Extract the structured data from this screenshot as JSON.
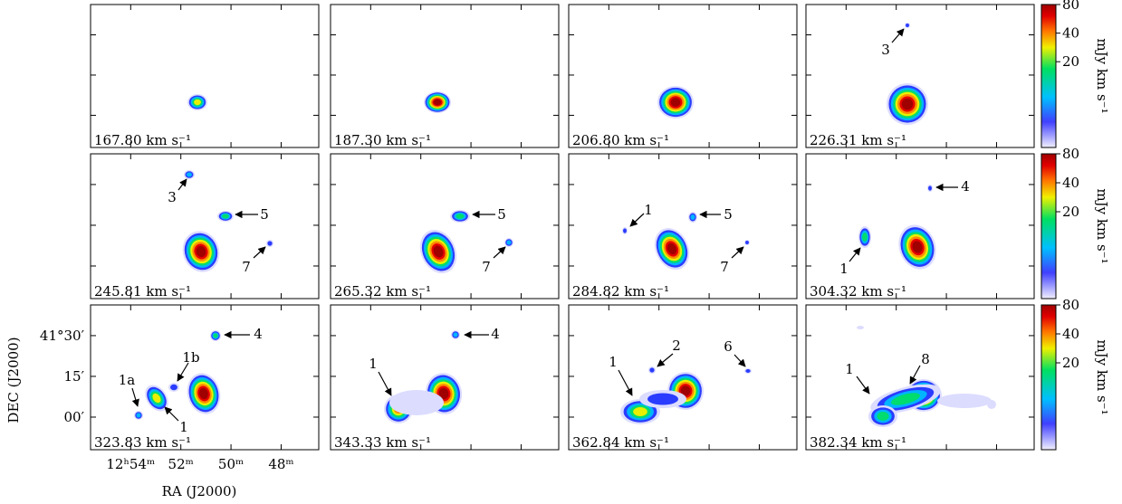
{
  "chart_data": {
    "type": "channel_maps",
    "x_label": "RA (J2000)",
    "y_label": "DEC (J2000)",
    "xlim": [
      55.6,
      46.5
    ],
    "xticks": [
      {
        "value": 54,
        "label": "12ʰ54ᵐ"
      },
      {
        "value": 52,
        "label": "52ᵐ"
      },
      {
        "value": 50,
        "label": "50ᵐ"
      },
      {
        "value": 48,
        "label": "48ᵐ"
      }
    ],
    "ylim": [
      -12,
      41.3
    ],
    "yticks": [
      {
        "value": 30,
        "label": "41°30′"
      },
      {
        "value": 15,
        "label": "15′"
      },
      {
        "value": 0,
        "label": "00′"
      }
    ],
    "colorbar": {
      "label": "mJy km s⁻¹",
      "lim": [
        2.5,
        80
      ],
      "log": true,
      "ticks": [
        20,
        40,
        80
      ]
    },
    "panels": [
      {
        "label": "167.80 km s⁻¹",
        "annotations": []
      },
      {
        "label": "187.30 km s⁻¹",
        "annotations": []
      },
      {
        "label": "206.80 km s⁻¹",
        "annotations": []
      },
      {
        "label": "226.31 km s⁻¹",
        "annotations": [
          "3"
        ]
      },
      {
        "label": "245.81 km s⁻¹",
        "annotations": [
          "3",
          "5",
          "7"
        ]
      },
      {
        "label": "265.32 km s⁻¹",
        "annotations": [
          "5",
          "7"
        ]
      },
      {
        "label": "284.82 km s⁻¹",
        "annotations": [
          "1",
          "5",
          "7"
        ]
      },
      {
        "label": "304.32 km s⁻¹",
        "annotations": [
          "4",
          "1"
        ]
      },
      {
        "label": "323.83 km s⁻¹",
        "annotations": [
          "4",
          "1b",
          "1a",
          "1"
        ]
      },
      {
        "label": "343.33 km s⁻¹",
        "annotations": [
          "4",
          "1"
        ]
      },
      {
        "label": "362.84 km s⁻¹",
        "annotations": [
          "2",
          "6",
          "1"
        ]
      },
      {
        "label": "382.34 km s⁻¹",
        "annotations": [
          "1",
          "8"
        ]
      }
    ]
  }
}
